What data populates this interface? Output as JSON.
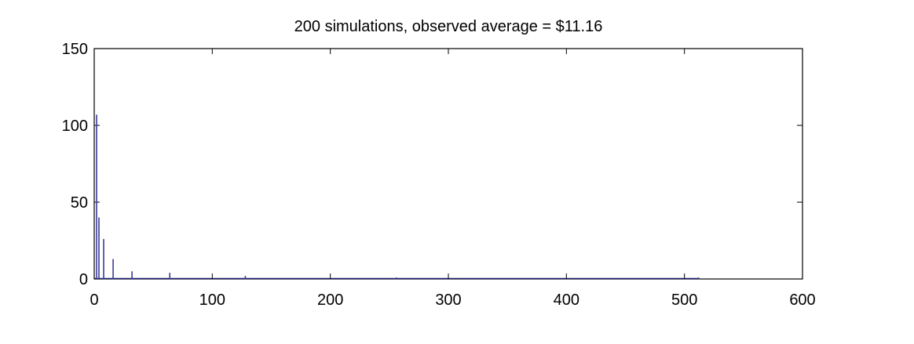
{
  "chart_data": {
    "type": "bar",
    "title": "200 simulations, observed average = $11.16",
    "xlabel": "",
    "ylabel": "",
    "xlim": [
      0,
      600
    ],
    "ylim": [
      0,
      150
    ],
    "xticks": [
      0,
      100,
      200,
      300,
      400,
      500,
      600
    ],
    "yticks": [
      0,
      50,
      100,
      150
    ],
    "xtick_labels": [
      "0",
      "100",
      "200",
      "300",
      "400",
      "500",
      "600"
    ],
    "ytick_labels": [
      "0",
      "50",
      "100",
      "150"
    ],
    "grid": false,
    "legend": "none",
    "bar_color": "#3a3a9a",
    "baseline_color": "#1a1a6e",
    "x": [
      2,
      4,
      8,
      16,
      32,
      64,
      128,
      256,
      512
    ],
    "values": [
      107,
      40,
      26,
      13,
      5,
      4,
      2,
      1,
      1
    ]
  }
}
